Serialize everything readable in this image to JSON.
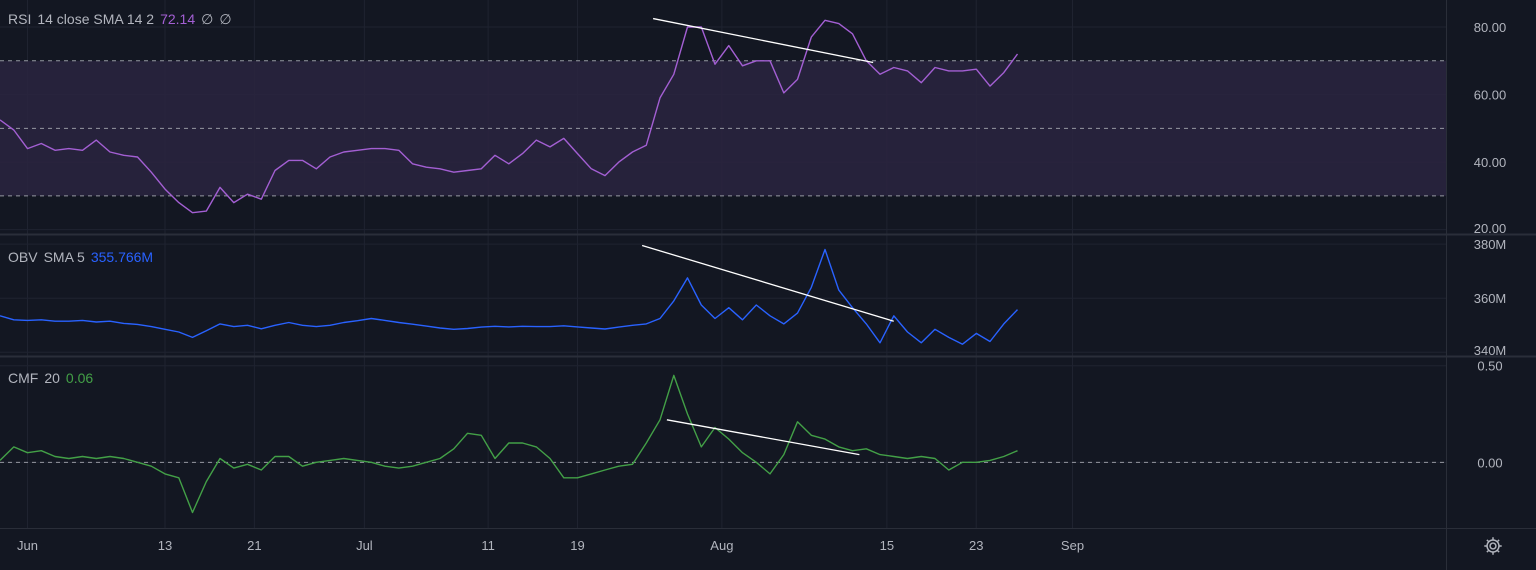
{
  "legends": {
    "rsi": {
      "label": "RSI",
      "params": "14 close SMA 14 2",
      "value": "72.14",
      "extra1": "∅",
      "extra2": "∅"
    },
    "obv": {
      "label": "OBV",
      "params": "SMA 5",
      "value": "355.766M"
    },
    "cmf": {
      "label": "CMF",
      "params": "20",
      "value": "0.06"
    }
  },
  "colors": {
    "background": "#131722",
    "grid": "#1f2330",
    "rsi_line": "#a35fd3",
    "rsi_band": "#2a2440",
    "obv_line": "#2962ff",
    "cmf_line": "#43a047",
    "trendline": "#ffffff",
    "text": "#b2b5be"
  },
  "icons": {
    "settings": "gear-icon"
  },
  "chart_data": [
    {
      "type": "line",
      "title": "RSI 14 close SMA 14 2",
      "ylim": [
        19,
        88
      ],
      "yticks": [
        80,
        60,
        40,
        20
      ],
      "ytick_labels": [
        "80.00",
        "60.00",
        "40.00",
        "20.00"
      ],
      "levels": [
        70,
        50,
        30
      ],
      "band": [
        30,
        70
      ],
      "series": [
        {
          "name": "RSI",
          "values": [
            52.5,
            49.5,
            44,
            45.5,
            43.5,
            44,
            43.5,
            46.5,
            43,
            42,
            41.5,
            37,
            32,
            28,
            25,
            25.5,
            32.5,
            28,
            30.5,
            29,
            37.5,
            40.5,
            40.5,
            38,
            41.5,
            43,
            43.5,
            44,
            44,
            43.5,
            39.5,
            38.5,
            38,
            37,
            37.5,
            38,
            42,
            39.5,
            42.5,
            46.5,
            44.5,
            47,
            42.5,
            38,
            36,
            40,
            43,
            45,
            59,
            66,
            80,
            80,
            69,
            74.5,
            68.5,
            70,
            70,
            60.5,
            64.5,
            77,
            82,
            81,
            78,
            70,
            66,
            68,
            67,
            63.5,
            68,
            67,
            67,
            67.5,
            62.5,
            66.5,
            72
          ]
        }
      ],
      "trendlines": [
        {
          "x": [
            47.5,
            63.5
          ],
          "y": [
            82.5,
            69.5
          ]
        }
      ]
    },
    {
      "type": "line",
      "title": "OBV SMA 5",
      "ylim": [
        339,
        383
      ],
      "yticks": [
        380,
        360,
        340
      ],
      "ytick_labels": [
        "380M",
        "360M",
        "340M"
      ],
      "series": [
        {
          "name": "OBV",
          "values": [
            353.5,
            352,
            351.8,
            352,
            351.5,
            351.5,
            351.8,
            351.2,
            351.5,
            350.7,
            350.3,
            349.5,
            348.5,
            347.5,
            345.5,
            348,
            350.5,
            349.5,
            350,
            348.7,
            350,
            351,
            350,
            349.5,
            350,
            351,
            351.7,
            352.5,
            351.8,
            351,
            350.4,
            349.7,
            349,
            348.5,
            348.8,
            349.3,
            349.6,
            349.4,
            349.6,
            349.5,
            349.5,
            349.8,
            349.4,
            349,
            348.6,
            349.3,
            350,
            350.5,
            352.5,
            359,
            367.5,
            357.5,
            352.5,
            356.5,
            352,
            357.5,
            353.5,
            350.5,
            354.5,
            364,
            378,
            363,
            356.5,
            350.5,
            343.5,
            353.5,
            347.5,
            343.5,
            348.5,
            345.5,
            343,
            347,
            344,
            350.5,
            355.8
          ]
        }
      ],
      "trendlines": [
        {
          "x": [
            46.7,
            65
          ],
          "y": [
            379.5,
            351.5
          ]
        }
      ]
    },
    {
      "type": "line",
      "title": "CMF 20",
      "ylim": [
        -0.34,
        0.54
      ],
      "yticks": [
        0.5,
        0.0
      ],
      "ytick_labels": [
        "0.50",
        "0.00"
      ],
      "levels": [
        0
      ],
      "series": [
        {
          "name": "CMF",
          "values": [
            0.01,
            0.08,
            0.05,
            0.06,
            0.03,
            0.02,
            0.03,
            0.02,
            0.03,
            0.02,
            0.0,
            -0.02,
            -0.06,
            -0.08,
            -0.26,
            -0.1,
            0.02,
            -0.03,
            -0.01,
            -0.04,
            0.03,
            0.03,
            -0.02,
            0.0,
            0.01,
            0.02,
            0.01,
            0.0,
            -0.02,
            -0.03,
            -0.02,
            0.0,
            0.02,
            0.07,
            0.15,
            0.14,
            0.02,
            0.1,
            0.1,
            0.08,
            0.02,
            -0.08,
            -0.08,
            -0.06,
            -0.04,
            -0.02,
            -0.01,
            0.1,
            0.22,
            0.45,
            0.25,
            0.08,
            0.18,
            0.12,
            0.05,
            0.0,
            -0.06,
            0.04,
            0.21,
            0.14,
            0.12,
            0.08,
            0.06,
            0.07,
            0.04,
            0.03,
            0.02,
            0.03,
            0.02,
            -0.04,
            0.0,
            0.0,
            0.01,
            0.03,
            0.06
          ]
        }
      ],
      "trendlines": [
        {
          "x": [
            48.5,
            62.5
          ],
          "y": [
            0.22,
            0.04
          ]
        }
      ]
    }
  ],
  "x_axis": {
    "ticks": [
      {
        "label": "Jun",
        "pos": 2
      },
      {
        "label": "13",
        "pos": 12
      },
      {
        "label": "21",
        "pos": 18.5
      },
      {
        "label": "Jul",
        "pos": 26.5
      },
      {
        "label": "11",
        "pos": 35.5
      },
      {
        "label": "19",
        "pos": 42
      },
      {
        "label": "Aug",
        "pos": 52.5
      },
      {
        "label": "15",
        "pos": 64.5
      },
      {
        "label": "23",
        "pos": 71
      },
      {
        "label": "Sep",
        "pos": 78
      }
    ]
  }
}
